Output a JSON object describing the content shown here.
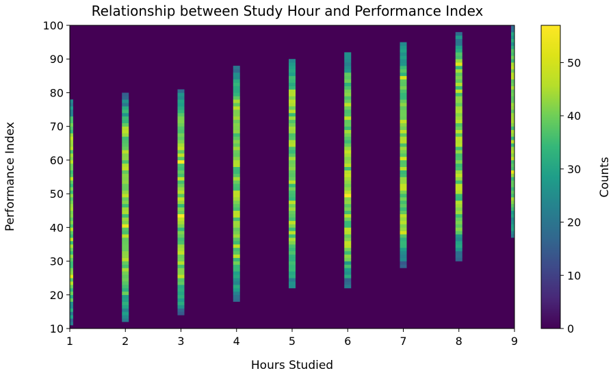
{
  "chart_data": {
    "type": "heatmap",
    "title": "Relationship between Study Hour and Performance Index",
    "xlabel": "Hours Studied",
    "ylabel": "Performance Index",
    "xlim": [
      1,
      9
    ],
    "ylim": [
      10,
      100
    ],
    "x_ticks": [
      1,
      2,
      3,
      4,
      5,
      6,
      7,
      8,
      9
    ],
    "y_ticks": [
      10,
      20,
      30,
      40,
      50,
      60,
      70,
      80,
      90,
      100
    ],
    "bin_width_y": 1,
    "background_color": "#440154",
    "colormap": "viridis",
    "colorbar": {
      "label": "Counts",
      "min": 0,
      "max": 57,
      "ticks": [
        0,
        10,
        20,
        30,
        40,
        50
      ]
    },
    "columns": [
      {
        "hours": 1,
        "y_min": 11,
        "y_max": 78,
        "peak": 52,
        "peak_at": [
          25
        ]
      },
      {
        "hours": 2,
        "y_min": 12,
        "y_max": 80,
        "peak": 54,
        "peak_at": [
          40
        ]
      },
      {
        "hours": 3,
        "y_min": 14,
        "y_max": 81,
        "peak": 57,
        "peak_at": [
          43,
          59
        ]
      },
      {
        "hours": 4,
        "y_min": 18,
        "y_max": 88,
        "peak": 44,
        "peak_at": [
          48
        ]
      },
      {
        "hours": 5,
        "y_min": 22,
        "y_max": 90,
        "peak": 44,
        "peak_at": [
          60
        ]
      },
      {
        "hours": 6,
        "y_min": 22,
        "y_max": 92,
        "peak": 57,
        "peak_at": [
          49
        ]
      },
      {
        "hours": 7,
        "y_min": 28,
        "y_max": 95,
        "peak": 50,
        "peak_at": [
          38,
          60,
          84
        ]
      },
      {
        "hours": 8,
        "y_min": 30,
        "y_max": 98,
        "peak": 52,
        "peak_at": [
          88
        ]
      },
      {
        "hours": 9,
        "y_min": 37,
        "y_max": 100,
        "peak": 54,
        "peak_at": [
          56
        ]
      }
    ]
  }
}
